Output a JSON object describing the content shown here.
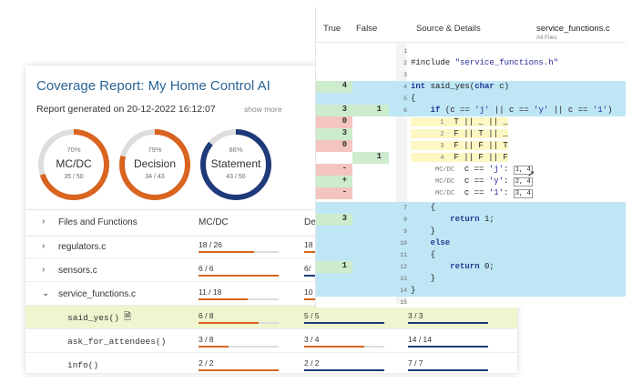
{
  "report": {
    "title": "Coverage Report: My Home Control AI",
    "generated": "Report generated on 20-12-2022 16:12:07",
    "show_more": "show more"
  },
  "gauges": [
    {
      "pct": "70%",
      "name": "MC/DC",
      "frac": "35 / 50",
      "ratio": 0.7,
      "color": "#d9641f"
    },
    {
      "pct": "79%",
      "name": "Decision",
      "frac": "34 / 43",
      "ratio": 0.79,
      "color": "#d9641f"
    },
    {
      "pct": "86%",
      "name": "Statement",
      "frac": "43 / 50",
      "ratio": 0.86,
      "color": "#1f3a7a"
    }
  ],
  "table": {
    "headers": {
      "files": "Files and Functions",
      "mcdc": "MC/DC",
      "decision": "De"
    },
    "rows": [
      {
        "chev": "›",
        "name": "regulators.c",
        "mono": false,
        "mcdc": "18 / 26",
        "mcdc_r": 0.69,
        "dec": "18",
        "dec_r": 0.7,
        "stmt": "",
        "stmt_r": 0
      },
      {
        "chev": "›",
        "name": "sensors.c",
        "mono": false,
        "mcdc": "6 / 6",
        "mcdc_r": 1.0,
        "dec": "6/",
        "dec_r": 1.0,
        "stmt": "",
        "stmt_r": 0
      },
      {
        "chev": "⌄",
        "name": "service_functions.c",
        "mono": false,
        "mcdc": "11 / 18",
        "mcdc_r": 0.61,
        "dec": "10",
        "dec_r": 0.6,
        "stmt": "",
        "stmt_r": 0
      },
      {
        "chev": "",
        "name": "said_yes()",
        "mono": true,
        "mcdc": "6 / 8",
        "mcdc_r": 0.75,
        "dec": "5 / 5",
        "dec_r": 1.0,
        "stmt": "3 / 3",
        "stmt_r": 1.0
      },
      {
        "chev": "",
        "name": "ask_for_attendees()",
        "mono": true,
        "mcdc": "3 / 8",
        "mcdc_r": 0.375,
        "dec": "3 / 4",
        "dec_r": 0.75,
        "stmt": "14 / 14",
        "stmt_r": 1.0
      },
      {
        "chev": "",
        "name": "info()",
        "mono": true,
        "mcdc": "2 / 2",
        "mcdc_r": 1.0,
        "dec": "2 / 2",
        "dec_r": 1.0,
        "stmt": "7 / 7",
        "stmt_r": 1.0
      }
    ]
  },
  "source": {
    "col_true": "True",
    "col_false": "False",
    "col_details": "Source & Details",
    "file_name": "service_functions.c",
    "file_sub": "All Files"
  }
}
